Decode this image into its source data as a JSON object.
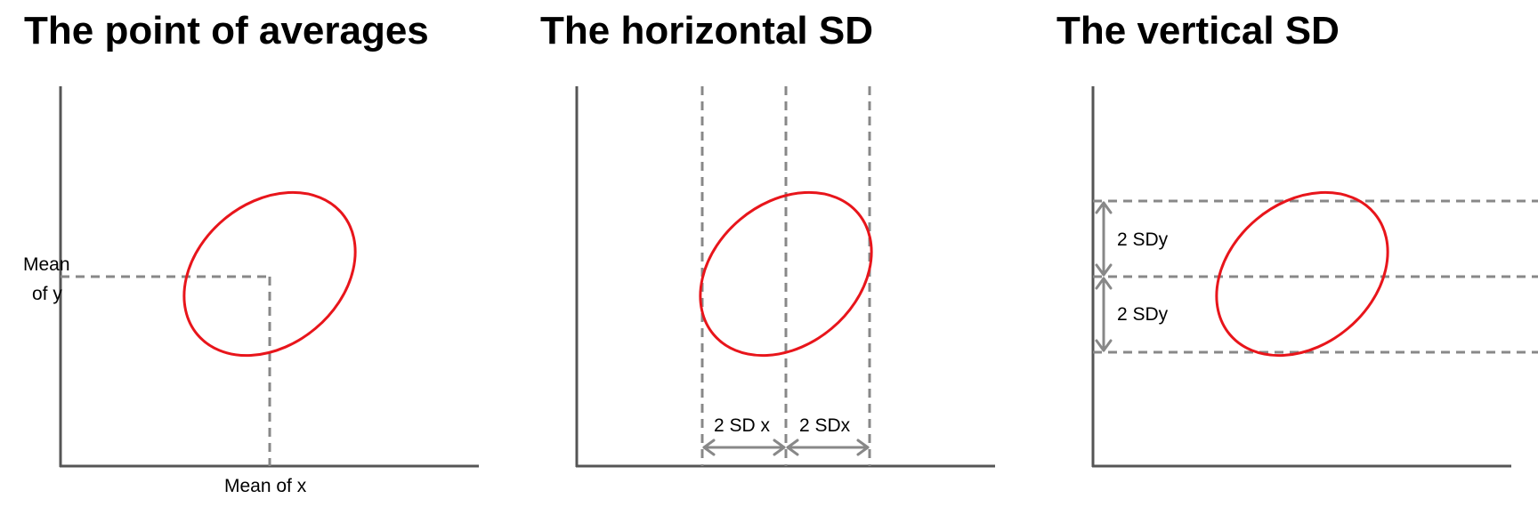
{
  "panels": [
    {
      "title": "The point of averages",
      "mean_x_label": "Mean of x",
      "mean_y_label_line1": "Mean",
      "mean_y_label_line2": "of y"
    },
    {
      "title": "The horizontal SD",
      "left_sd_label": "2 SD x",
      "right_sd_label": "2 SDx"
    },
    {
      "title": "The vertical SD",
      "upper_sd_label": "2 SDy",
      "lower_sd_label": "2 SDy"
    }
  ],
  "colors": {
    "ellipse": "#e8151b",
    "axis": "#555555",
    "guide": "#888888"
  }
}
